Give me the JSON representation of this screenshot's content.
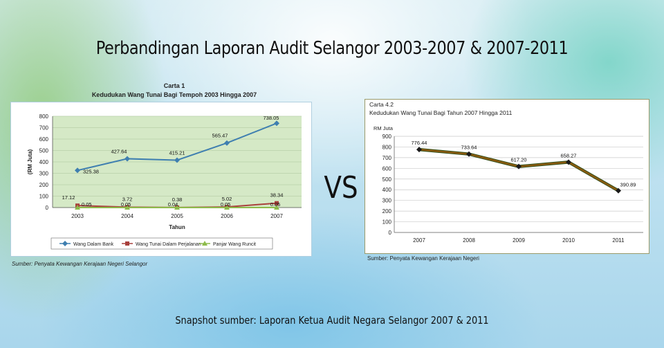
{
  "page": {
    "title": "Perbandingan Laporan Audit Selangor 2003-2007 & 2007-2011",
    "vs_label": "VS",
    "footer": "Snapshot sumber: Laporan Ketua Audit Negara Selangor 2007 & 2011"
  },
  "chart_data": [
    {
      "type": "line",
      "caption": "Carta 1",
      "title": "Kedudukan Wang Tunai Bagi Tempoh 2003 Hingga 2007",
      "xlabel": "Tahun",
      "ylabel": "(RM Juta)",
      "x": [
        "2003",
        "2004",
        "2005",
        "2006",
        "2007"
      ],
      "ylim": [
        0,
        800
      ],
      "yticks": [
        0,
        100,
        200,
        300,
        400,
        500,
        600,
        700,
        800
      ],
      "grid": true,
      "legend_position": "bottom",
      "series": [
        {
          "name": "Wang Dalam Bank",
          "values": [
            325.38,
            427.64,
            415.21,
            565.47,
            738.05
          ],
          "labels": [
            "325.38",
            "427.64",
            "415.21",
            "565.47",
            "738.05"
          ],
          "color": "#3f7fb0",
          "marker": "diamond"
        },
        {
          "name": "Wang Tunai Dalam Perjalanan",
          "values": [
            17.12,
            3.72,
            0.38,
            5.02,
            38.34
          ],
          "labels": [
            "17.12",
            "3.72",
            "0.38",
            "5.02",
            "38.34"
          ],
          "color": "#a9403c",
          "marker": "square"
        },
        {
          "name": "Panjar Wang Runcit",
          "values": [
            0.05,
            0.05,
            0.04,
            0.05,
            0.05
          ],
          "labels": [
            "0.05",
            "0.05",
            "0.04",
            "0.05",
            "0.05"
          ],
          "color": "#8dbb4b",
          "marker": "triangle"
        }
      ],
      "source": "Sumber: Penyata Kewangan Kerajaan Negeri Selangor"
    },
    {
      "type": "line",
      "caption": "Carta 4.2",
      "title": "Kedudukan Wang Tunai Bagi Tahun 2007 Hingga 2011",
      "xlabel": "",
      "ylabel": "RM Juta",
      "x": [
        "2007",
        "2008",
        "2009",
        "2010",
        "2011"
      ],
      "ylim": [
        0,
        900
      ],
      "yticks": [
        0,
        100,
        200,
        300,
        400,
        500,
        600,
        700,
        800,
        900
      ],
      "grid": true,
      "legend_position": "none",
      "series": [
        {
          "name": "",
          "values": [
            776.44,
            733.64,
            617.2,
            658.27,
            390.89
          ],
          "labels": [
            "776.44",
            "733.64",
            "617.20",
            "658.27",
            "390.89"
          ],
          "color": "#8a5a10",
          "marker": "diamond"
        }
      ],
      "source": "Sumber: Penyata Kewangan Kerajaan Negeri"
    }
  ]
}
